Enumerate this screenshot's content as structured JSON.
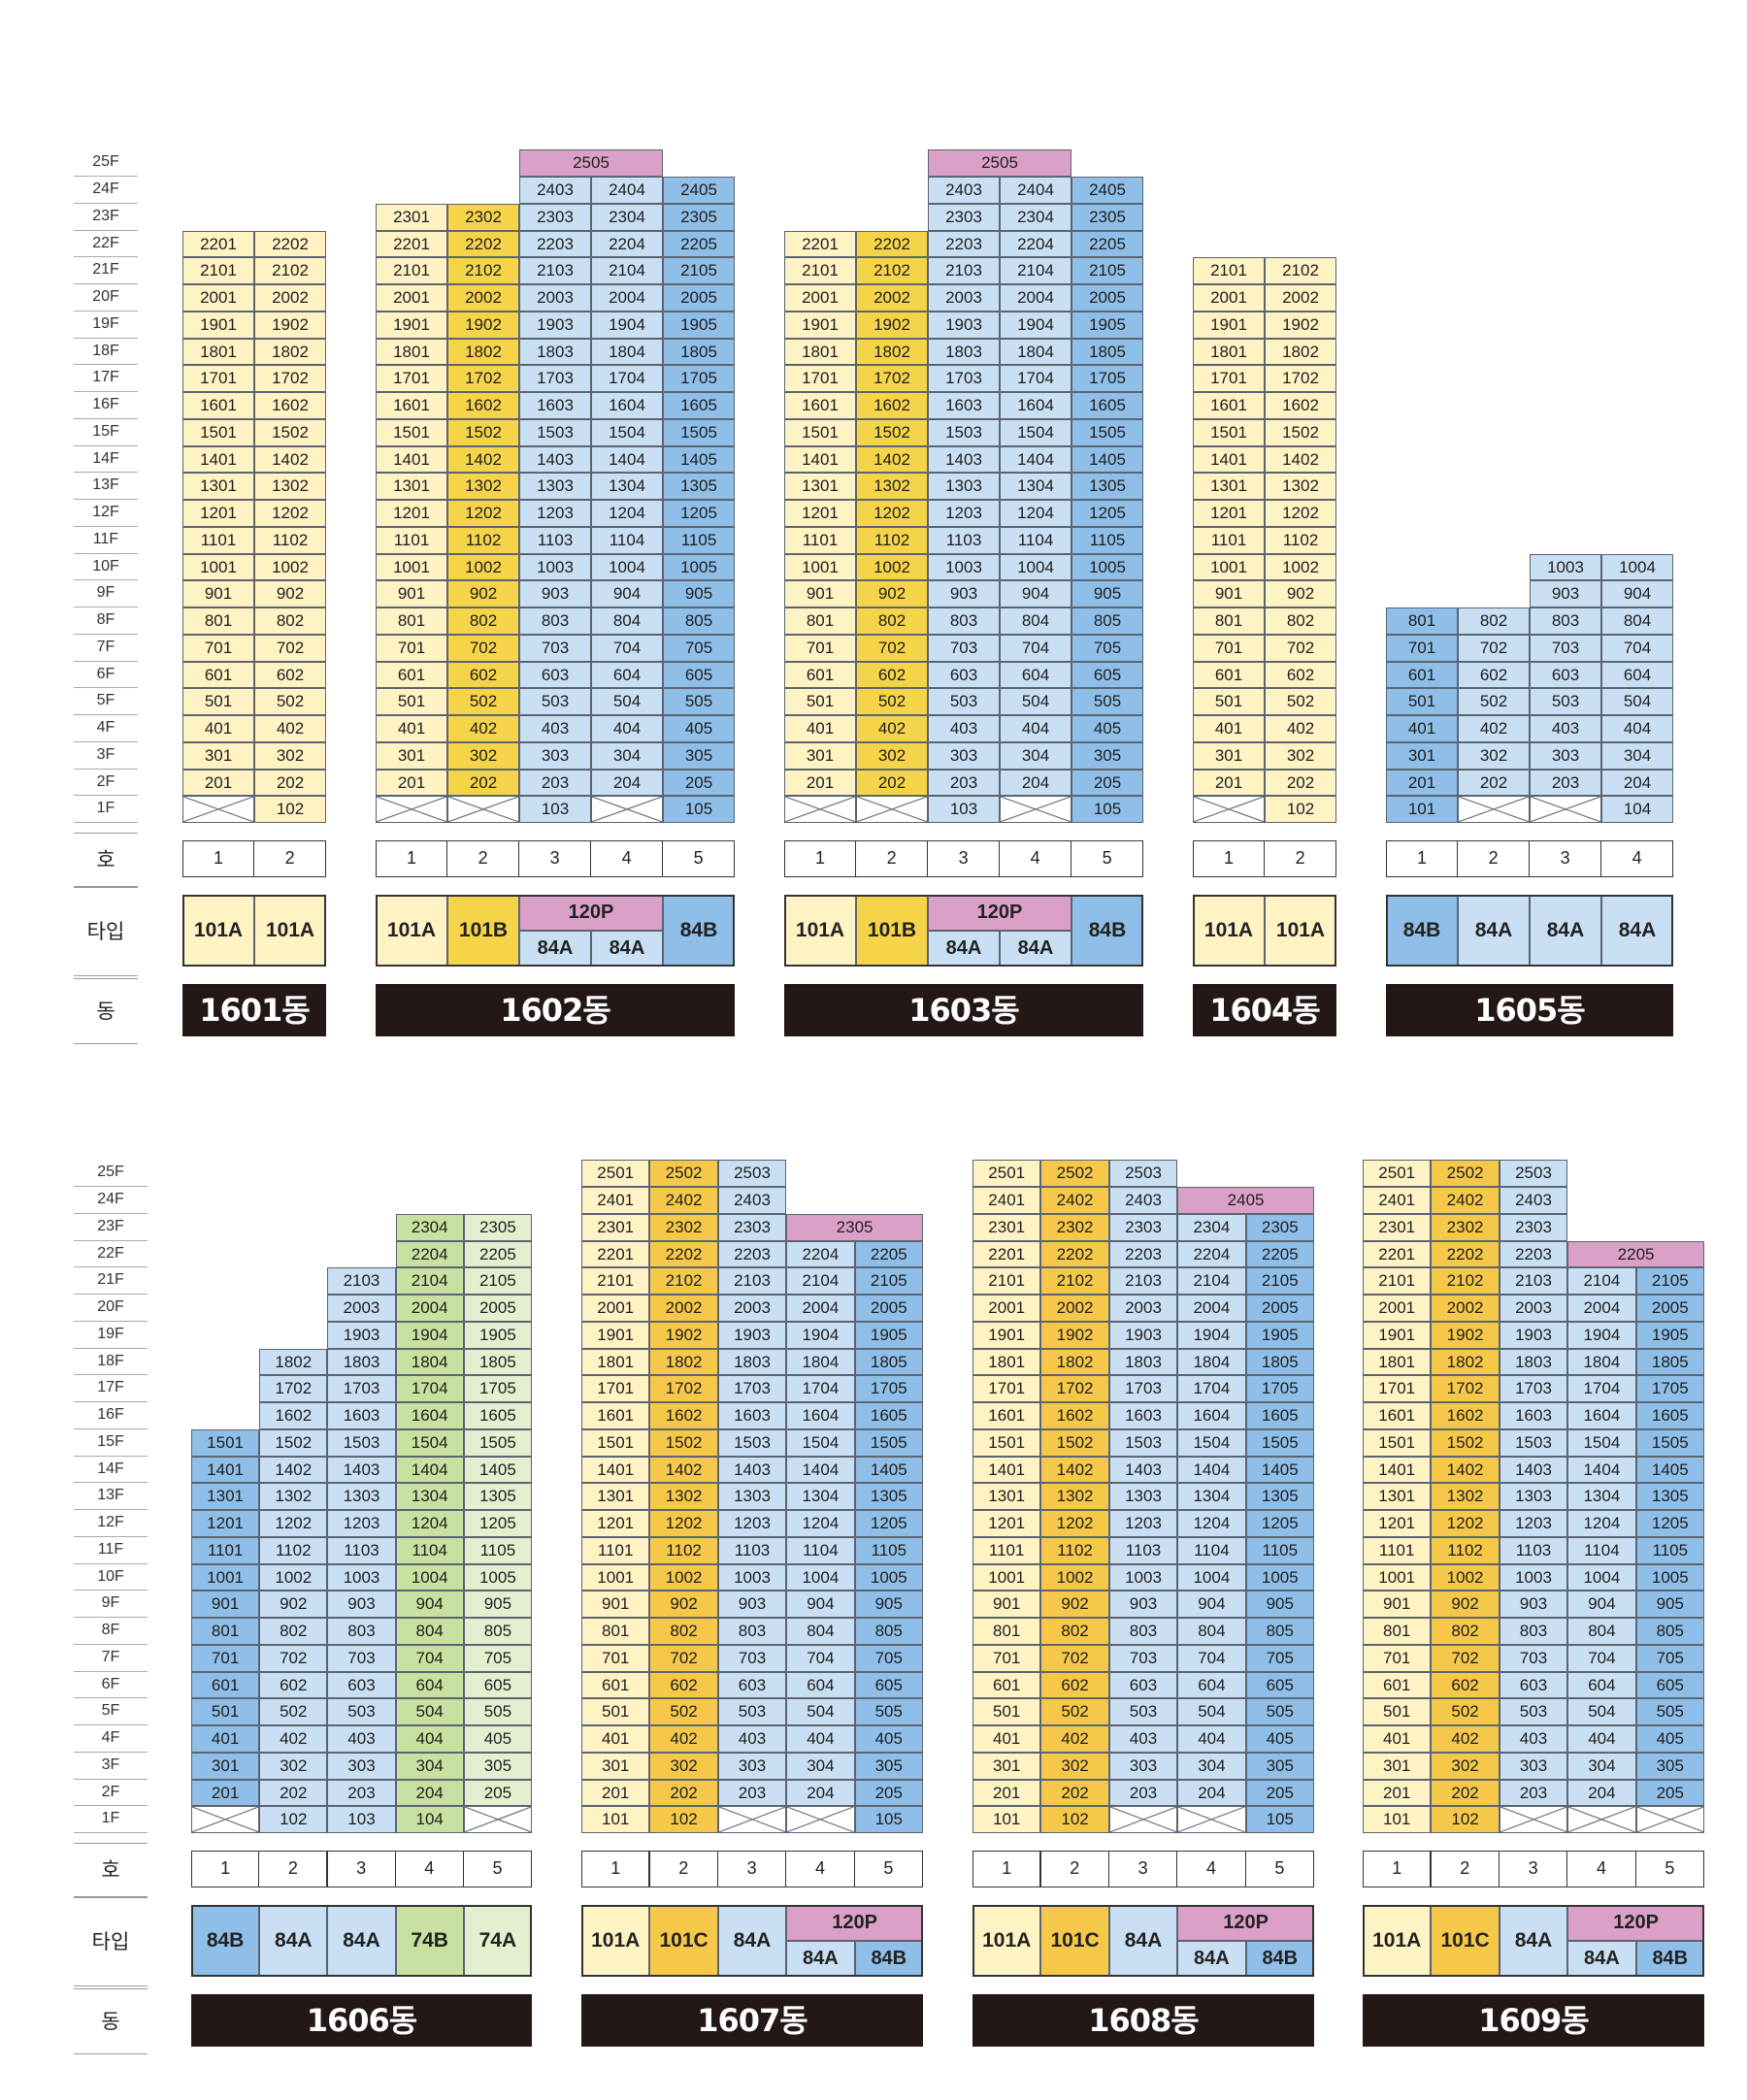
{
  "labels": {
    "ho": "호",
    "type": "타입",
    "dong": "동"
  },
  "colors": {
    "101A": "#fff3c4",
    "101B": "#f6d44a",
    "101C": "#f5c84a",
    "84A": "#c9dff3",
    "84B": "#8fbfe8",
    "74B": "#c8e1a0",
    "74A": "#e3efcf",
    "120P": "#dba0c8",
    "empty": "#ffffff"
  },
  "sections": [
    {
      "floors": [
        "1F",
        "2F",
        "3F",
        "4F",
        "5F",
        "6F",
        "7F",
        "8F",
        "9F",
        "10F",
        "11F",
        "12F",
        "13F",
        "14F",
        "15F",
        "16F",
        "17F",
        "18F",
        "19F",
        "20F",
        "21F",
        "22F",
        "23F",
        "24F",
        "25F"
      ],
      "buildings": [
        {
          "name": "1601동",
          "cols": [
            {
              "ho": "1",
              "type": "101A",
              "floors": [
                2,
                22
              ],
              "x1": true
            },
            {
              "ho": "2",
              "type": "101A",
              "floors": [
                1,
                22
              ]
            }
          ],
          "merged": [],
          "types": [
            {
              "label": "101A",
              "type": "101A"
            },
            {
              "label": "101A",
              "type": "101A"
            }
          ]
        },
        {
          "name": "1602동",
          "cols": [
            {
              "ho": "1",
              "type": "101A",
              "floors": [
                2,
                23
              ],
              "x1": true
            },
            {
              "ho": "2",
              "type": "101B",
              "floors": [
                2,
                23
              ],
              "x1": true
            },
            {
              "ho": "3",
              "type": "84A",
              "floors": [
                1,
                25
              ]
            },
            {
              "ho": "4",
              "type": "84A",
              "floors": [
                2,
                24
              ],
              "x1": true
            },
            {
              "ho": "5",
              "type": "84B",
              "floors": [
                1,
                24
              ]
            }
          ],
          "merged": [
            {
              "floor": 25,
              "from": 3,
              "to": 4,
              "label": "2505",
              "type": "120P"
            }
          ],
          "types": [
            {
              "label": "101A",
              "type": "101A"
            },
            {
              "label": "101B",
              "type": "101B"
            },
            {
              "label": "84A",
              "type": "84A"
            },
            {
              "label": "84A",
              "type": "84A"
            },
            {
              "label": "84B",
              "type": "84B"
            }
          ],
          "ptype": {
            "label": "120P",
            "from": 3,
            "to": 4
          }
        },
        {
          "name": "1603동",
          "cols": [
            {
              "ho": "1",
              "type": "101A",
              "floors": [
                2,
                22
              ],
              "x1": true
            },
            {
              "ho": "2",
              "type": "101B",
              "floors": [
                2,
                22
              ],
              "x1": true
            },
            {
              "ho": "3",
              "type": "84A",
              "floors": [
                1,
                25
              ]
            },
            {
              "ho": "4",
              "type": "84A",
              "floors": [
                2,
                24
              ],
              "x1": true
            },
            {
              "ho": "5",
              "type": "84B",
              "floors": [
                1,
                24
              ]
            }
          ],
          "merged": [
            {
              "floor": 25,
              "from": 3,
              "to": 4,
              "label": "2505",
              "type": "120P"
            }
          ],
          "types": [
            {
              "label": "101A",
              "type": "101A"
            },
            {
              "label": "101B",
              "type": "101B"
            },
            {
              "label": "84A",
              "type": "84A"
            },
            {
              "label": "84A",
              "type": "84A"
            },
            {
              "label": "84B",
              "type": "84B"
            }
          ],
          "ptype": {
            "label": "120P",
            "from": 3,
            "to": 4
          }
        },
        {
          "name": "1604동",
          "cols": [
            {
              "ho": "1",
              "type": "101A",
              "floors": [
                2,
                21
              ],
              "x1": true
            },
            {
              "ho": "2",
              "type": "101A",
              "floors": [
                1,
                21
              ]
            }
          ],
          "merged": [],
          "types": [
            {
              "label": "101A",
              "type": "101A"
            },
            {
              "label": "101A",
              "type": "101A"
            }
          ]
        },
        {
          "name": "1605동",
          "cols": [
            {
              "ho": "1",
              "type": "84B",
              "floors": [
                1,
                8
              ]
            },
            {
              "ho": "2",
              "type": "84A",
              "floors": [
                2,
                8
              ],
              "x1": true
            },
            {
              "ho": "3",
              "type": "84A",
              "floors": [
                2,
                10
              ],
              "x1": true
            },
            {
              "ho": "4",
              "type": "84A",
              "floors": [
                1,
                10
              ]
            }
          ],
          "merged": [],
          "types": [
            {
              "label": "84B",
              "type": "84B"
            },
            {
              "label": "84A",
              "type": "84A"
            },
            {
              "label": "84A",
              "type": "84A"
            },
            {
              "label": "84A",
              "type": "84A"
            }
          ]
        }
      ]
    },
    {
      "floors": [
        "1F",
        "2F",
        "3F",
        "4F",
        "5F",
        "6F",
        "7F",
        "8F",
        "9F",
        "10F",
        "11F",
        "12F",
        "13F",
        "14F",
        "15F",
        "16F",
        "17F",
        "18F",
        "19F",
        "20F",
        "21F",
        "22F",
        "23F",
        "24F",
        "25F"
      ],
      "buildings": [
        {
          "name": "1606동",
          "cols": [
            {
              "ho": "1",
              "type": "84B",
              "floors": [
                2,
                15
              ],
              "x1": true
            },
            {
              "ho": "2",
              "type": "84A",
              "floors": [
                1,
                18
              ]
            },
            {
              "ho": "3",
              "type": "84A",
              "floors": [
                1,
                21
              ]
            },
            {
              "ho": "4",
              "type": "74B",
              "floors": [
                1,
                23
              ]
            },
            {
              "ho": "5",
              "type": "74A",
              "floors": [
                2,
                23
              ],
              "x1": true
            }
          ],
          "merged": [],
          "types": [
            {
              "label": "84B",
              "type": "84B"
            },
            {
              "label": "84A",
              "type": "84A"
            },
            {
              "label": "84A",
              "type": "84A"
            },
            {
              "label": "74B",
              "type": "74B"
            },
            {
              "label": "74A",
              "type": "74A"
            }
          ]
        },
        {
          "name": "1607동",
          "cols": [
            {
              "ho": "1",
              "type": "101A",
              "floors": [
                1,
                25
              ]
            },
            {
              "ho": "2",
              "type": "101C",
              "floors": [
                1,
                25
              ]
            },
            {
              "ho": "3",
              "type": "84A",
              "floors": [
                2,
                25
              ],
              "x1": true
            },
            {
              "ho": "4",
              "type": "84A",
              "floors": [
                2,
                22
              ],
              "x1": true
            },
            {
              "ho": "5",
              "type": "84B",
              "floors": [
                1,
                22
              ]
            }
          ],
          "merged": [
            {
              "floor": 23,
              "from": 4,
              "to": 5,
              "label": "2305",
              "type": "120P"
            }
          ],
          "types": [
            {
              "label": "101A",
              "type": "101A"
            },
            {
              "label": "101C",
              "type": "101C"
            },
            {
              "label": "84A",
              "type": "84A"
            },
            {
              "label": "84A",
              "type": "84A"
            },
            {
              "label": "84B",
              "type": "84B"
            }
          ],
          "ptype": {
            "label": "120P",
            "from": 4,
            "to": 5
          }
        },
        {
          "name": "1608동",
          "cols": [
            {
              "ho": "1",
              "type": "101A",
              "floors": [
                1,
                25
              ]
            },
            {
              "ho": "2",
              "type": "101C",
              "floors": [
                1,
                25
              ]
            },
            {
              "ho": "3",
              "type": "84A",
              "floors": [
                2,
                25
              ],
              "x1": true
            },
            {
              "ho": "4",
              "type": "84A",
              "floors": [
                2,
                23
              ],
              "x1": true
            },
            {
              "ho": "5",
              "type": "84B",
              "floors": [
                1,
                23
              ]
            }
          ],
          "merged": [
            {
              "floor": 24,
              "from": 4,
              "to": 5,
              "label": "2405",
              "type": "120P"
            }
          ],
          "types": [
            {
              "label": "101A",
              "type": "101A"
            },
            {
              "label": "101C",
              "type": "101C"
            },
            {
              "label": "84A",
              "type": "84A"
            },
            {
              "label": "84A",
              "type": "84A"
            },
            {
              "label": "84B",
              "type": "84B"
            }
          ],
          "ptype": {
            "label": "120P",
            "from": 4,
            "to": 5
          }
        },
        {
          "name": "1609동",
          "cols": [
            {
              "ho": "1",
              "type": "101A",
              "floors": [
                1,
                25
              ]
            },
            {
              "ho": "2",
              "type": "101C",
              "floors": [
                1,
                25
              ]
            },
            {
              "ho": "3",
              "type": "84A",
              "floors": [
                2,
                25
              ],
              "x1": true
            },
            {
              "ho": "4",
              "type": "84A",
              "floors": [
                2,
                21
              ],
              "x1": true
            },
            {
              "ho": "5",
              "type": "84B",
              "floors": [
                2,
                21
              ],
              "x1": true
            }
          ],
          "merged": [
            {
              "floor": 22,
              "from": 4,
              "to": 5,
              "label": "2205",
              "type": "120P"
            }
          ],
          "types": [
            {
              "label": "101A",
              "type": "101A"
            },
            {
              "label": "101C",
              "type": "101C"
            },
            {
              "label": "84A",
              "type": "84A"
            },
            {
              "label": "84A",
              "type": "84A"
            },
            {
              "label": "84B",
              "type": "84B"
            }
          ],
          "ptype": {
            "label": "120P",
            "from": 4,
            "to": 5
          }
        }
      ]
    }
  ]
}
